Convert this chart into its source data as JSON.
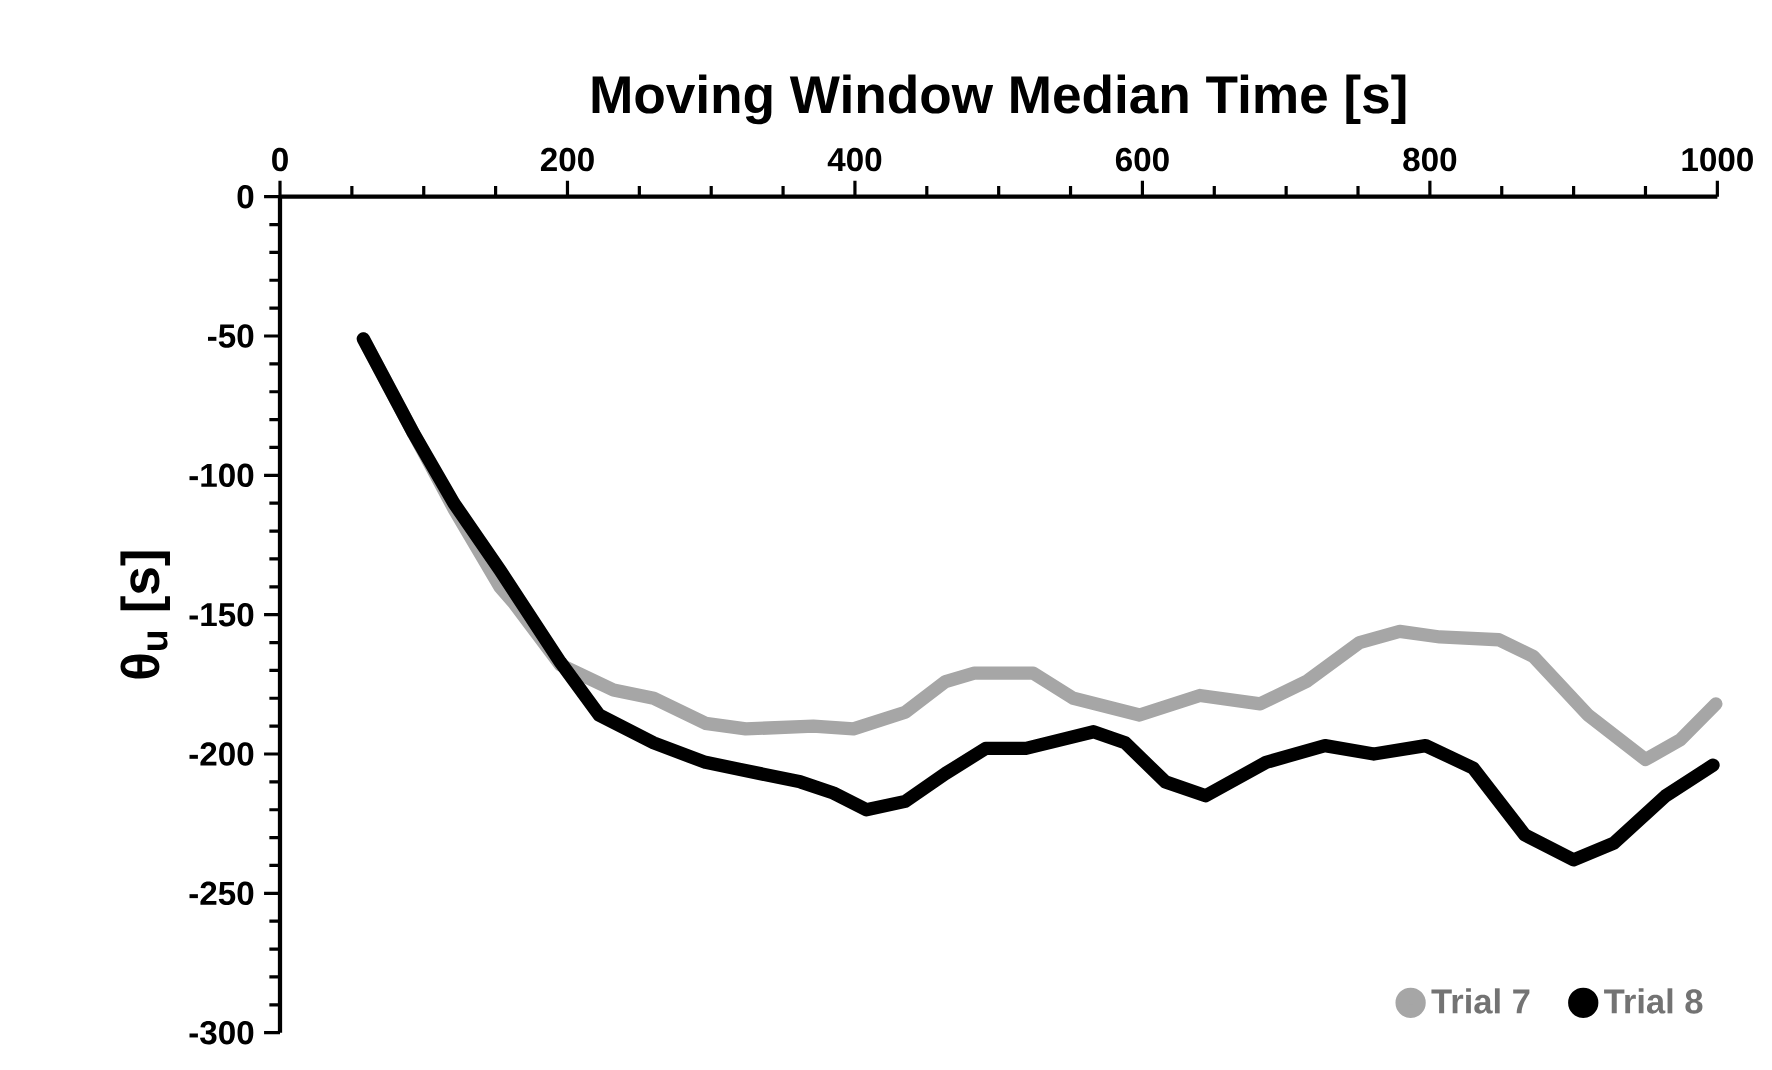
{
  "chart_data": {
    "type": "line",
    "xlabel": "Moving Window Median Time [s]",
    "ylabel": "θ$_{u}$ [s]",
    "xlim": [
      0,
      1000
    ],
    "xticks": [
      0,
      200,
      400,
      600,
      800,
      1000
    ],
    "ylim": [
      -300,
      0
    ],
    "yticks": [
      -300,
      -250,
      -200,
      -150,
      -100,
      -50,
      0
    ],
    "grid": false,
    "legend": "bottom right",
    "marker": "none",
    "line_style": "solid",
    "series": [
      {
        "name": "Trial 7",
        "color": "#a6a6a6",
        "x": [
          58,
          93,
          121,
          153,
          163,
          195,
          232,
          260,
          296,
          324,
          371,
          399,
          435,
          463,
          483,
          524,
          552,
          598,
          640,
          682,
          714,
          751,
          779,
          807,
          848,
          872,
          910,
          950,
          974,
          999
        ],
        "values": [
          -51,
          -85,
          -112,
          -140,
          -146,
          -168,
          -177,
          -180,
          -189,
          -191,
          -190,
          -191,
          -185,
          -174,
          -171,
          -171,
          -180,
          -186,
          -179,
          -182,
          -174,
          -160,
          -156,
          -158,
          -159,
          -165,
          -186,
          -202,
          -195,
          -182
        ]
      },
      {
        "name": "Trial 8",
        "color": "#000000",
        "x": [
          58,
          93,
          121,
          153,
          195,
          222,
          260,
          296,
          362,
          385,
          408,
          435,
          463,
          491,
          519,
          566,
          588,
          616,
          644,
          686,
          727,
          761,
          797,
          830,
          866,
          900,
          928,
          964,
          997
        ],
        "values": [
          -51,
          -85,
          -110,
          -134,
          -167,
          -186,
          -196,
          -203,
          -210,
          -214,
          -220,
          -217,
          -207,
          -198,
          -198,
          -192,
          -196,
          -210,
          -215,
          -203,
          -197,
          -200,
          -197,
          -205,
          -229,
          -238,
          -232,
          -215,
          -204
        ]
      }
    ]
  }
}
